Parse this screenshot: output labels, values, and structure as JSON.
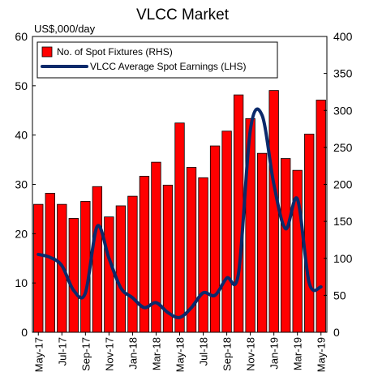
{
  "chart_data": {
    "type": "bar+line",
    "title": "VLCC Market",
    "ylabel_left": "US$,000/day",
    "ylim_left": [
      0,
      60
    ],
    "ylim_right": [
      0,
      400
    ],
    "yticks_left": [
      0,
      10,
      20,
      30,
      40,
      50,
      60
    ],
    "yticks_right": [
      0,
      50,
      100,
      150,
      200,
      250,
      300,
      350,
      400
    ],
    "categories": [
      "May-17",
      "Jun-17",
      "Jul-17",
      "Aug-17",
      "Sep-17",
      "Oct-17",
      "Nov-17",
      "Dec-17",
      "Jan-18",
      "Feb-18",
      "Mar-18",
      "Apr-18",
      "May-18",
      "Jun-18",
      "Jul-18",
      "Aug-18",
      "Sep-18",
      "Oct-18",
      "Nov-18",
      "Dec-18",
      "Jan-19",
      "Feb-19",
      "Mar-19",
      "Apr-19",
      "May-19"
    ],
    "xtick_labels": [
      "May-17",
      "Jul-17",
      "Sep-17",
      "Nov-17",
      "Jan-18",
      "Mar-18",
      "May-18",
      "Jul-18",
      "Sep-18",
      "Nov-18",
      "Jan-19",
      "Mar-19",
      "May-19"
    ],
    "legend_position": "top",
    "series": [
      {
        "name": "No. of Spot Fixtures (RHS)",
        "type": "bar",
        "axis": "right",
        "color": "#ff0000",
        "values": [
          173,
          188,
          173,
          154,
          177,
          197,
          156,
          171,
          184,
          211,
          230,
          199,
          283,
          223,
          209,
          252,
          272,
          321,
          289,
          242,
          327,
          235,
          219,
          268,
          314
        ]
      },
      {
        "name": "VLCC Average Spot Earnings (LHS)",
        "type": "line",
        "axis": "left",
        "color": "#0b2a6b",
        "values": [
          15.8,
          15.2,
          13.5,
          8.5,
          8.0,
          21.5,
          15.0,
          9.0,
          7.0,
          5.0,
          6.0,
          4.0,
          3.0,
          5.0,
          8.0,
          7.5,
          11.0,
          12.0,
          41.0,
          44.0,
          30.0,
          21.0,
          27.0,
          10.0,
          9.2
        ]
      }
    ]
  }
}
